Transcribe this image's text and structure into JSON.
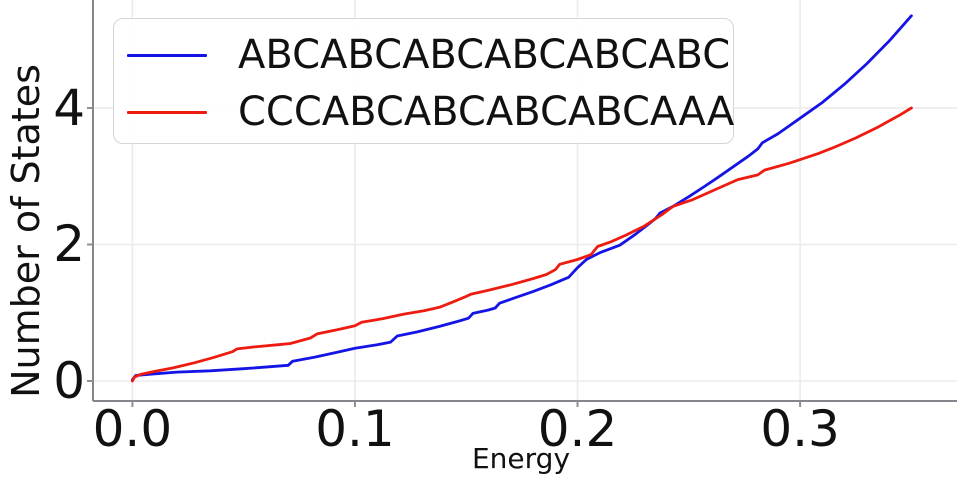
{
  "chart_data": {
    "type": "line",
    "title": "",
    "xlabel": "Energy",
    "ylabel": "Number of States",
    "xlim": [
      -0.0177,
      0.3705
    ],
    "ylim": [
      -0.293,
      5.582
    ],
    "grid": true,
    "legend_position": "upper left",
    "xticks": {
      "values": [
        0.0,
        0.1,
        0.2,
        0.3
      ],
      "labels": [
        "0.0",
        "0.1",
        "0.2",
        "0.3"
      ]
    },
    "yticks": {
      "values": [
        0,
        2,
        4
      ],
      "labels": [
        "0",
        "2",
        "4"
      ]
    },
    "series": [
      {
        "name": "ABCABCABCABCABCABC",
        "color": "#1414e6",
        "points": [
          [
            0.0,
            0.02
          ],
          [
            0.0015,
            0.08
          ],
          [
            0.008,
            0.1
          ],
          [
            0.02,
            0.13
          ],
          [
            0.035,
            0.15
          ],
          [
            0.05,
            0.18
          ],
          [
            0.062,
            0.21
          ],
          [
            0.07,
            0.23
          ],
          [
            0.072,
            0.29
          ],
          [
            0.082,
            0.35
          ],
          [
            0.092,
            0.42
          ],
          [
            0.1,
            0.48
          ],
          [
            0.11,
            0.53
          ],
          [
            0.116,
            0.57
          ],
          [
            0.119,
            0.66
          ],
          [
            0.128,
            0.72
          ],
          [
            0.138,
            0.8
          ],
          [
            0.147,
            0.88
          ],
          [
            0.151,
            0.92
          ],
          [
            0.153,
            0.99
          ],
          [
            0.16,
            1.04
          ],
          [
            0.163,
            1.07
          ],
          [
            0.165,
            1.14
          ],
          [
            0.172,
            1.22
          ],
          [
            0.18,
            1.31
          ],
          [
            0.188,
            1.41
          ],
          [
            0.196,
            1.52
          ],
          [
            0.2,
            1.66
          ],
          [
            0.204,
            1.78
          ],
          [
            0.21,
            1.88
          ],
          [
            0.219,
            1.99
          ],
          [
            0.226,
            2.15
          ],
          [
            0.232,
            2.3
          ],
          [
            0.235,
            2.38
          ],
          [
            0.237,
            2.46
          ],
          [
            0.243,
            2.56
          ],
          [
            0.25,
            2.7
          ],
          [
            0.257,
            2.85
          ],
          [
            0.263,
            2.98
          ],
          [
            0.27,
            3.14
          ],
          [
            0.277,
            3.3
          ],
          [
            0.281,
            3.4
          ],
          [
            0.283,
            3.49
          ],
          [
            0.29,
            3.62
          ],
          [
            0.3,
            3.85
          ],
          [
            0.31,
            4.08
          ],
          [
            0.32,
            4.35
          ],
          [
            0.33,
            4.65
          ],
          [
            0.34,
            4.98
          ],
          [
            0.35,
            5.35
          ]
        ]
      },
      {
        "name": "CCCABCABCABCABCAAA",
        "color": "#ee1c10",
        "points": [
          [
            0.0,
            0.0
          ],
          [
            0.001,
            0.06
          ],
          [
            0.004,
            0.1
          ],
          [
            0.01,
            0.14
          ],
          [
            0.018,
            0.19
          ],
          [
            0.027,
            0.26
          ],
          [
            0.036,
            0.34
          ],
          [
            0.045,
            0.43
          ],
          [
            0.047,
            0.47
          ],
          [
            0.055,
            0.5
          ],
          [
            0.065,
            0.53
          ],
          [
            0.071,
            0.55
          ],
          [
            0.08,
            0.63
          ],
          [
            0.083,
            0.69
          ],
          [
            0.092,
            0.75
          ],
          [
            0.1,
            0.81
          ],
          [
            0.103,
            0.86
          ],
          [
            0.112,
            0.91
          ],
          [
            0.122,
            0.98
          ],
          [
            0.131,
            1.03
          ],
          [
            0.138,
            1.08
          ],
          [
            0.145,
            1.17
          ],
          [
            0.15,
            1.24
          ],
          [
            0.152,
            1.27
          ],
          [
            0.16,
            1.33
          ],
          [
            0.17,
            1.41
          ],
          [
            0.18,
            1.5
          ],
          [
            0.186,
            1.56
          ],
          [
            0.19,
            1.63
          ],
          [
            0.192,
            1.71
          ],
          [
            0.2,
            1.78
          ],
          [
            0.206,
            1.85
          ],
          [
            0.209,
            1.97
          ],
          [
            0.215,
            2.04
          ],
          [
            0.222,
            2.14
          ],
          [
            0.23,
            2.27
          ],
          [
            0.238,
            2.44
          ],
          [
            0.243,
            2.56
          ],
          [
            0.252,
            2.66
          ],
          [
            0.263,
            2.82
          ],
          [
            0.272,
            2.95
          ],
          [
            0.281,
            3.02
          ],
          [
            0.284,
            3.09
          ],
          [
            0.295,
            3.19
          ],
          [
            0.308,
            3.33
          ],
          [
            0.315,
            3.42
          ],
          [
            0.325,
            3.56
          ],
          [
            0.335,
            3.72
          ],
          [
            0.345,
            3.9
          ],
          [
            0.35,
            4.0
          ]
        ]
      }
    ],
    "colors": {
      "grid": "#ebebeb",
      "spine": "#85858c",
      "tick": "#8f8f8f",
      "text": "#111111",
      "legend_border": "#d5d5d5",
      "background": "#ffffff"
    }
  }
}
